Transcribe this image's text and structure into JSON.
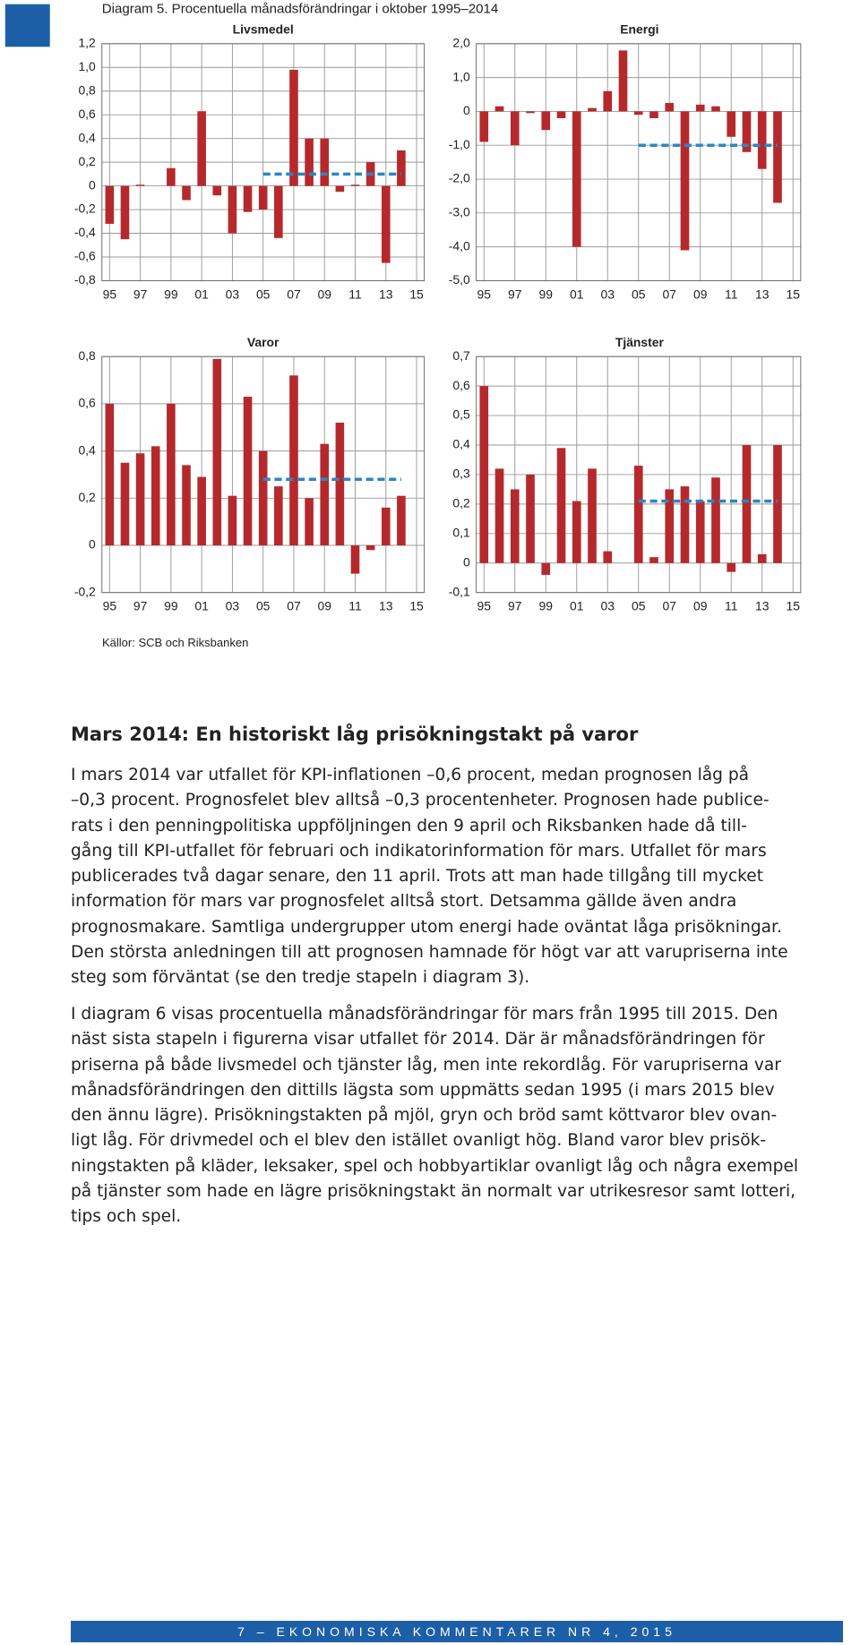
{
  "diagram_title": "Diagram 5. Procentuella månadsförändringar i oktober 1995–2014",
  "chart_data": [
    {
      "type": "bar",
      "title": "Livsmedel",
      "x": [
        1995,
        1996,
        1997,
        1998,
        1999,
        2000,
        2001,
        2002,
        2003,
        2004,
        2005,
        2006,
        2007,
        2008,
        2009,
        2010,
        2011,
        2012,
        2013,
        2014
      ],
      "values": [
        -0.32,
        -0.45,
        0.01,
        0,
        0.15,
        -0.12,
        0.63,
        -0.08,
        -0.4,
        -0.22,
        -0.2,
        -0.44,
        0.98,
        0.4,
        0.4,
        -0.05,
        0.01,
        0.2,
        -0.65,
        0.3
      ],
      "color": "#b5292c",
      "xlim": [
        1994.5,
        2015.5
      ],
      "xticks": [
        {
          "value": 1995,
          "label": "95"
        },
        {
          "value": 1997,
          "label": "97"
        },
        {
          "value": 1999,
          "label": "99"
        },
        {
          "value": 2001,
          "label": "01"
        },
        {
          "value": 2003,
          "label": "03"
        },
        {
          "value": 2005,
          "label": "05"
        },
        {
          "value": 2007,
          "label": "07"
        },
        {
          "value": 2009,
          "label": "09"
        },
        {
          "value": 2011,
          "label": "11"
        },
        {
          "value": 2013,
          "label": "13"
        },
        {
          "value": 2015,
          "label": "15"
        }
      ],
      "ylim": [
        -0.8,
        1.2
      ],
      "yticks": [
        {
          "value": -0.8,
          "label": "-0,8"
        },
        {
          "value": -0.6,
          "label": "-0,6"
        },
        {
          "value": -0.4,
          "label": "-0,4"
        },
        {
          "value": -0.2,
          "label": "-0,2"
        },
        0,
        {
          "value": 0.2,
          "label": "0,2"
        },
        {
          "value": 0.4,
          "label": "0,4"
        },
        {
          "value": 0.6,
          "label": "0,6"
        },
        {
          "value": 0.8,
          "label": "0,8"
        },
        {
          "value": 1.0,
          "label": "1,0"
        },
        {
          "value": 1.2,
          "label": "1,2"
        }
      ],
      "grid": true,
      "mean_line": {
        "x": [
          2005,
          2014
        ],
        "values": [
          0.1,
          0.1
        ],
        "color": "#2e86c1"
      }
    },
    {
      "type": "bar",
      "title": "Energi",
      "x": [
        1995,
        1996,
        1997,
        1998,
        1999,
        2000,
        2001,
        2002,
        2003,
        2004,
        2005,
        2006,
        2007,
        2008,
        2009,
        2010,
        2011,
        2012,
        2013,
        2014
      ],
      "values": [
        -0.9,
        0.15,
        -1.0,
        -0.05,
        -0.55,
        -0.2,
        -4.0,
        0.1,
        0.6,
        1.8,
        -0.1,
        -0.2,
        0.25,
        -4.1,
        0.2,
        0.15,
        -0.75,
        -1.2,
        -1.7,
        -2.7
      ],
      "color": "#b5292c",
      "xlim": [
        1994.5,
        2015.5
      ],
      "xticks": [
        {
          "value": 1995,
          "label": "95"
        },
        {
          "value": 1997,
          "label": "97"
        },
        {
          "value": 1999,
          "label": "99"
        },
        {
          "value": 2001,
          "label": "01"
        },
        {
          "value": 2003,
          "label": "03"
        },
        {
          "value": 2005,
          "label": "05"
        },
        {
          "value": 2007,
          "label": "07"
        },
        {
          "value": 2009,
          "label": "09"
        },
        {
          "value": 2011,
          "label": "11"
        },
        {
          "value": 2013,
          "label": "13"
        },
        {
          "value": 2015,
          "label": "15"
        }
      ],
      "ylim": [
        -5,
        2
      ],
      "yticks": [
        {
          "value": -5,
          "label": "-5,0"
        },
        {
          "value": -4,
          "label": "-4,0"
        },
        {
          "value": -3,
          "label": "-3,0"
        },
        {
          "value": -2,
          "label": "-2,0"
        },
        {
          "value": -1,
          "label": "-1,0"
        },
        0,
        {
          "value": 1,
          "label": "1,0"
        },
        {
          "value": 2,
          "label": "2,0"
        }
      ],
      "grid": true,
      "mean_line": {
        "x": [
          2005,
          2014
        ],
        "values": [
          -1.0,
          -1.0
        ],
        "color": "#2e86c1"
      }
    },
    {
      "type": "bar",
      "title": "Varor",
      "x": [
        1995,
        1996,
        1997,
        1998,
        1999,
        2000,
        2001,
        2002,
        2003,
        2004,
        2005,
        2006,
        2007,
        2008,
        2009,
        2010,
        2011,
        2012,
        2013,
        2014
      ],
      "values": [
        0.6,
        0.35,
        0.39,
        0.42,
        0.6,
        0.34,
        0.29,
        0.79,
        0.21,
        0.63,
        0.4,
        0.25,
        0.72,
        0.2,
        0.43,
        0.52,
        -0.12,
        -0.02,
        0.16,
        0.21
      ],
      "color": "#b5292c",
      "xlim": [
        1994.5,
        2015.5
      ],
      "xticks": [
        {
          "value": 1995,
          "label": "95"
        },
        {
          "value": 1997,
          "label": "97"
        },
        {
          "value": 1999,
          "label": "99"
        },
        {
          "value": 2001,
          "label": "01"
        },
        {
          "value": 2003,
          "label": "03"
        },
        {
          "value": 2005,
          "label": "05"
        },
        {
          "value": 2007,
          "label": "07"
        },
        {
          "value": 2009,
          "label": "09"
        },
        {
          "value": 2011,
          "label": "11"
        },
        {
          "value": 2013,
          "label": "13"
        },
        {
          "value": 2015,
          "label": "15"
        }
      ],
      "ylim": [
        -0.2,
        0.8
      ],
      "yticks": [
        {
          "value": -0.2,
          "label": "-0,2"
        },
        0,
        {
          "value": 0.2,
          "label": "0,2"
        },
        {
          "value": 0.4,
          "label": "0,4"
        },
        {
          "value": 0.6,
          "label": "0,6"
        },
        {
          "value": 0.8,
          "label": "0,8"
        }
      ],
      "grid": true,
      "mean_line": {
        "x": [
          2005,
          2014
        ],
        "values": [
          0.28,
          0.28
        ],
        "color": "#2e86c1"
      }
    },
    {
      "type": "bar",
      "title": "Tjänster",
      "x": [
        1995,
        1996,
        1997,
        1998,
        1999,
        2000,
        2001,
        2002,
        2003,
        2004,
        2005,
        2006,
        2007,
        2008,
        2009,
        2010,
        2011,
        2012,
        2013,
        2014
      ],
      "values": [
        0.6,
        0.32,
        0.25,
        0.3,
        -0.04,
        0.39,
        0.21,
        0.32,
        0.04,
        0,
        0.33,
        0.02,
        0.25,
        0.26,
        0.21,
        0.29,
        -0.03,
        0.4,
        0.03,
        0.4
      ],
      "color": "#b5292c",
      "xlim": [
        1994.5,
        2015.5
      ],
      "xticks": [
        {
          "value": 1995,
          "label": "95"
        },
        {
          "value": 1997,
          "label": "97"
        },
        {
          "value": 1999,
          "label": "99"
        },
        {
          "value": 2001,
          "label": "01"
        },
        {
          "value": 2003,
          "label": "03"
        },
        {
          "value": 2005,
          "label": "05"
        },
        {
          "value": 2007,
          "label": "07"
        },
        {
          "value": 2009,
          "label": "09"
        },
        {
          "value": 2011,
          "label": "11"
        },
        {
          "value": 2013,
          "label": "13"
        },
        {
          "value": 2015,
          "label": "15"
        }
      ],
      "ylim": [
        -0.1,
        0.7
      ],
      "yticks": [
        {
          "value": -0.1,
          "label": "-0,1"
        },
        0,
        {
          "value": 0.1,
          "label": "0,1"
        },
        {
          "value": 0.2,
          "label": "0,2"
        },
        {
          "value": 0.3,
          "label": "0,3"
        },
        {
          "value": 0.4,
          "label": "0,4"
        },
        {
          "value": 0.5,
          "label": "0,5"
        },
        {
          "value": 0.6,
          "label": "0,6"
        },
        {
          "value": 0.7,
          "label": "0,7"
        }
      ],
      "grid": true,
      "mean_line": {
        "x": [
          2005,
          2014
        ],
        "values": [
          0.21,
          0.21
        ],
        "color": "#2e86c1"
      }
    }
  ],
  "source": "Källor: SCB och Riksbanken",
  "heading": "Mars 2014: En historiskt låg prisökningstakt på varor",
  "paragraphs": [
    [
      "I mars 2014 var utfallet för KPI-inflationen –0,6 procent, medan prognosen låg på",
      "–0,3 procent. Prognosfelet blev alltså –0,3 procentenheter. Prognosen hade publice-",
      "rats i den penningpolitiska uppföljningen den 9 april och Riksbanken hade då till-",
      "gång till KPI-utfallet för februari och indikatorinformation för mars. Utfallet för mars",
      "publicerades två dagar senare, den 11 april. Trots att man hade tillgång till mycket",
      "information för mars var prognosfelet alltså stort. Detsamma gällde även andra",
      "prognosmakare. Samtliga undergrupper utom energi hade oväntat låga prisökningar.",
      "Den största anledningen till att prognosen hamnade för högt var att varupriserna inte",
      "steg som förväntat (se den tredje stapeln i diagram 3)."
    ],
    [
      "I diagram 6 visas procentuella månadsförändringar för mars från 1995 till 2015. Den",
      "näst sista stapeln i figurerna visar utfallet för 2014. Där är månadsförändringen för",
      "priserna på både livsmedel och tjänster låg, men inte rekordlåg. För varupriserna var",
      "månadsförändringen den dittills lägsta som uppmätts sedan 1995 (i mars 2015 blev",
      "den ännu lägre). Prisökningstakten på mjöl, gryn och bröd samt köttvaror blev ovan-",
      "ligt låg. För drivmedel och el blev den istället ovanligt hög. Bland varor blev prisök-",
      "ningstakten på kläder, leksaker, spel och hobbyartiklar ovanligt låg och några exempel",
      "på tjänster som hade en lägre prisökningstakt än normalt var utrikesresor samt lotteri,",
      "tips och spel."
    ]
  ],
  "footer": "7 – EKONOMISKA KOMMENTARER NR 4, 2015"
}
